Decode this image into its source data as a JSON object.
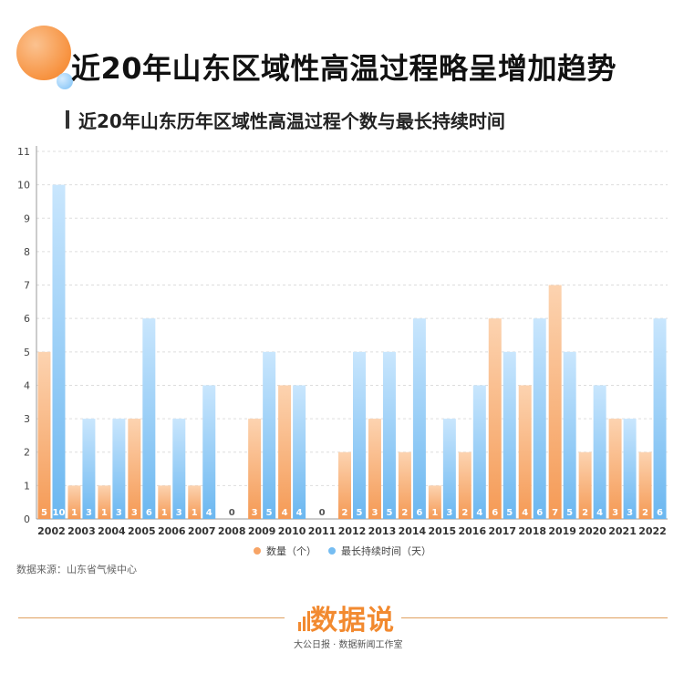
{
  "header": {
    "title": "近20年山东区域性高温过程略呈增加趋势",
    "subtitle": "近20年山东历年区域性高温过程个数与最长持续时间"
  },
  "source": "数据来源：山东省气候中心",
  "branding": {
    "logo_text": "数据说",
    "logo_subtitle": "大公日报 · 数据新闻工作室"
  },
  "colors": {
    "count_bar": "#f7a466",
    "duration_bar": "#76bdf2"
  },
  "chart_data": {
    "type": "bar",
    "title": "",
    "xlabel": "",
    "ylabel": "",
    "ylim": [
      0,
      11
    ],
    "yticks": [
      0,
      1,
      2,
      3,
      4,
      5,
      6,
      7,
      8,
      9,
      10,
      11
    ],
    "grid": true,
    "legend_position": "bottom-center",
    "categories": [
      "2002",
      "2003",
      "2004",
      "2005",
      "2006",
      "2007",
      "2008",
      "2009",
      "2010",
      "2011",
      "2012",
      "2013",
      "2014",
      "2015",
      "2016",
      "2017",
      "2018",
      "2019",
      "2020",
      "2021",
      "2022"
    ],
    "series": [
      {
        "name": "数量（个）",
        "values": [
          5,
          1,
          1,
          3,
          1,
          1,
          0,
          3,
          4,
          0,
          2,
          3,
          2,
          1,
          2,
          6,
          4,
          7,
          2,
          3,
          2
        ]
      },
      {
        "name": "最长持续时间（天）",
        "values": [
          10,
          3,
          3,
          6,
          3,
          4,
          0,
          5,
          4,
          0,
          5,
          5,
          6,
          3,
          4,
          5,
          6,
          5,
          4,
          3,
          6
        ]
      }
    ]
  }
}
